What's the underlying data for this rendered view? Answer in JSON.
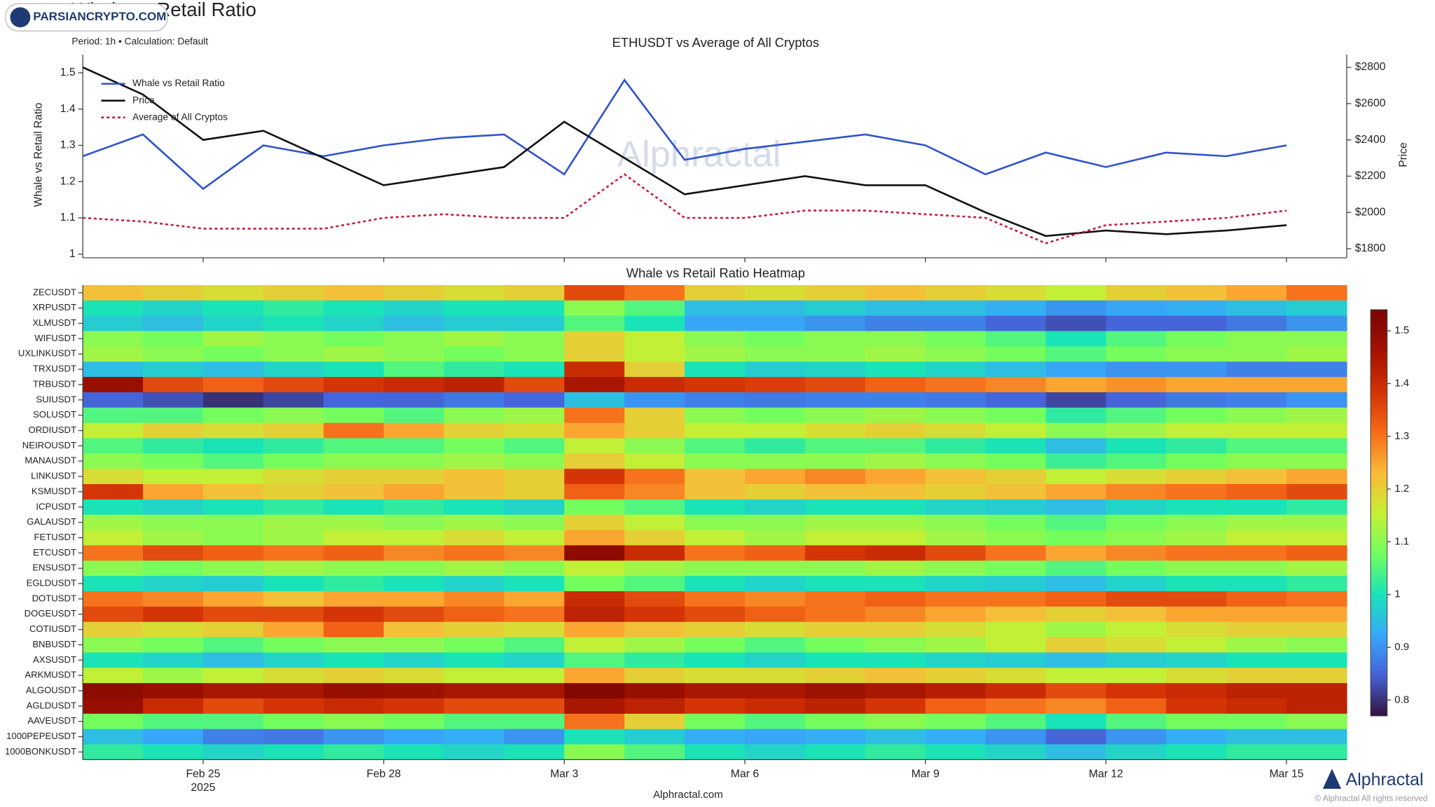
{
  "header": {
    "title": "Whale vs Retail Ratio",
    "subtitle": "Period: 1h • Calculation: Default"
  },
  "watermark": "PARSIANCRYPTO.COM",
  "footer": {
    "source": "Alphractal.com",
    "brand": "Alphractal",
    "copyright": "© Alphractal All rights reserved"
  },
  "chart_data": [
    {
      "type": "line",
      "title": "ETHUSDT vs Average of All Cryptos",
      "watermark": "Alphractal",
      "ylabel": "Whale vs Retail Ratio",
      "y2label": "Price",
      "legend": "upper left",
      "grid": false,
      "x": [
        "2025-02-23",
        "2025-02-24",
        "2025-02-25",
        "2025-02-26",
        "2025-02-27",
        "2025-02-28",
        "2025-03-01",
        "2025-03-02",
        "2025-03-03",
        "2025-03-04",
        "2025-03-05",
        "2025-03-06",
        "2025-03-07",
        "2025-03-08",
        "2025-03-09",
        "2025-03-10",
        "2025-03-11",
        "2025-03-12",
        "2025-03-13",
        "2025-03-14",
        "2025-03-15"
      ],
      "xlim": [
        "2025-02-23",
        "2025-03-16"
      ],
      "ylim": [
        0.99,
        1.55
      ],
      "yticks": [
        1,
        1.1,
        1.2,
        1.3,
        1.4,
        1.5
      ],
      "y2lim": [
        1750,
        2870
      ],
      "y2ticks": [
        {
          "value": 1800,
          "label": "$1800"
        },
        {
          "value": 2000,
          "label": "$2000"
        },
        {
          "value": 2200,
          "label": "$2200"
        },
        {
          "value": 2400,
          "label": "$2400"
        },
        {
          "value": 2600,
          "label": "$2600"
        },
        {
          "value": 2800,
          "label": "$2800"
        }
      ],
      "series": [
        {
          "name": "Whale vs Retail Ratio",
          "color": "#2f54c8",
          "values": [
            1.27,
            1.33,
            1.18,
            1.3,
            1.27,
            1.3,
            1.32,
            1.33,
            1.22,
            1.48,
            1.26,
            1.29,
            1.31,
            1.33,
            1.3,
            1.22,
            1.28,
            1.24,
            1.28,
            1.27,
            1.3
          ]
        },
        {
          "name": "Price",
          "color": "#111111",
          "axis": "y2",
          "values": [
            2800,
            2650,
            2400,
            2450,
            2300,
            2150,
            2200,
            2250,
            2500,
            2300,
            2100,
            2150,
            2200,
            2150,
            2150,
            2000,
            1870,
            1900,
            1880,
            1900,
            1930
          ]
        },
        {
          "name": "Average of All Cryptos",
          "color": "#c8193c",
          "dash": true,
          "values": [
            1.1,
            1.09,
            1.07,
            1.07,
            1.07,
            1.1,
            1.11,
            1.1,
            1.1,
            1.22,
            1.1,
            1.1,
            1.12,
            1.12,
            1.11,
            1.1,
            1.03,
            1.08,
            1.09,
            1.1,
            1.12
          ]
        }
      ]
    },
    {
      "type": "heatmap",
      "title": "Whale vs Retail Ratio Heatmap",
      "x_year_label": "2025",
      "x": [
        "2025-02-23",
        "2025-02-24",
        "2025-02-25",
        "2025-02-26",
        "2025-02-27",
        "2025-02-28",
        "2025-03-01",
        "2025-03-02",
        "2025-03-03",
        "2025-03-04",
        "2025-03-05",
        "2025-03-06",
        "2025-03-07",
        "2025-03-08",
        "2025-03-09",
        "2025-03-10",
        "2025-03-11",
        "2025-03-12",
        "2025-03-13",
        "2025-03-14",
        "2025-03-15"
      ],
      "xlim": [
        "2025-02-23",
        "2025-03-16"
      ],
      "xticks": [
        {
          "value": "2025-02-25",
          "label": "Feb 25"
        },
        {
          "value": "2025-02-28",
          "label": "Feb 28"
        },
        {
          "value": "2025-03-03",
          "label": "Mar 3"
        },
        {
          "value": "2025-03-06",
          "label": "Mar 6"
        },
        {
          "value": "2025-03-09",
          "label": "Mar 9"
        },
        {
          "value": "2025-03-12",
          "label": "Mar 12"
        },
        {
          "value": "2025-03-15",
          "label": "Mar 15"
        }
      ],
      "categories": [
        "ZECUSDT",
        "XRPUSDT",
        "XLMUSDT",
        "WIFUSDT",
        "UXLINKUSDT",
        "TRXUSDT",
        "TRBUSDT",
        "SUIUSDT",
        "SOLUSDT",
        "ORDIUSDT",
        "NEIROUSDT",
        "MANAUSDT",
        "LINKUSDT",
        "KSMUSDT",
        "ICPUSDT",
        "GALAUSDT",
        "FETUSDT",
        "ETCUSDT",
        "ENSUSDT",
        "EGLDUSDT",
        "DOTUSDT",
        "DOGEUSDT",
        "COTIUSDT",
        "BNBUSDT",
        "AXSUSDT",
        "ARKMUSDT",
        "ALGOUSDT",
        "AGLDUSDT",
        "AAVEUSDT",
        "1000PEPEUSDT",
        "1000BONKUSDT"
      ],
      "clim": [
        0.77,
        1.54
      ],
      "cticks": [
        0.8,
        0.9,
        1,
        1.1,
        1.2,
        1.3,
        1.4,
        1.5
      ],
      "colorscale": [
        [
          0,
          "#30123b"
        ],
        [
          0.1,
          "#4662d7"
        ],
        [
          0.2,
          "#36aaf9"
        ],
        [
          0.3,
          "#1ae4b6"
        ],
        [
          0.4,
          "#72fe5e"
        ],
        [
          0.5,
          "#c7ef34"
        ],
        [
          0.6,
          "#fbb938"
        ],
        [
          0.7,
          "#f56918"
        ],
        [
          0.8,
          "#d23105"
        ],
        [
          0.9,
          "#a11201"
        ],
        [
          1,
          "#7a0403"
        ]
      ],
      "values": [
        [
          1.22,
          1.2,
          1.18,
          1.2,
          1.22,
          1.2,
          1.18,
          1.2,
          1.35,
          1.3,
          1.2,
          1.18,
          1.2,
          1.22,
          1.2,
          1.18,
          1.15,
          1.2,
          1.22,
          1.25,
          1.3
        ],
        [
          1.0,
          0.98,
          1.0,
          1.02,
          1.0,
          0.98,
          1.0,
          1.0,
          1.1,
          1.05,
          0.95,
          0.95,
          0.97,
          0.95,
          0.95,
          0.93,
          0.9,
          0.92,
          0.93,
          0.95,
          0.97
        ],
        [
          0.97,
          0.95,
          0.98,
          1.0,
          0.98,
          0.95,
          0.97,
          0.97,
          1.05,
          1.0,
          0.92,
          0.92,
          0.9,
          0.88,
          0.88,
          0.85,
          0.83,
          0.85,
          0.85,
          0.87,
          0.9
        ],
        [
          1.1,
          1.08,
          1.12,
          1.1,
          1.08,
          1.1,
          1.12,
          1.1,
          1.2,
          1.15,
          1.1,
          1.08,
          1.1,
          1.1,
          1.08,
          1.05,
          1.0,
          1.05,
          1.08,
          1.1,
          1.1
        ],
        [
          1.12,
          1.1,
          1.08,
          1.1,
          1.12,
          1.1,
          1.08,
          1.1,
          1.2,
          1.15,
          1.12,
          1.1,
          1.1,
          1.12,
          1.1,
          1.08,
          1.05,
          1.08,
          1.1,
          1.1,
          1.12
        ],
        [
          0.95,
          0.97,
          0.95,
          0.98,
          1.0,
          1.05,
          1.02,
          1.0,
          1.4,
          1.2,
          1.0,
          0.97,
          0.98,
          1.0,
          0.98,
          0.95,
          0.92,
          0.9,
          0.9,
          0.88,
          0.88
        ],
        [
          1.48,
          1.35,
          1.32,
          1.35,
          1.38,
          1.4,
          1.42,
          1.35,
          1.45,
          1.4,
          1.38,
          1.37,
          1.35,
          1.32,
          1.3,
          1.28,
          1.25,
          1.27,
          1.25,
          1.25,
          1.25
        ],
        [
          0.85,
          0.83,
          0.8,
          0.82,
          0.85,
          0.85,
          0.87,
          0.85,
          0.95,
          0.9,
          0.88,
          0.87,
          0.88,
          0.88,
          0.87,
          0.85,
          0.82,
          0.85,
          0.87,
          0.88,
          0.9
        ],
        [
          1.05,
          1.05,
          1.08,
          1.1,
          1.08,
          1.05,
          1.1,
          1.12,
          1.3,
          1.2,
          1.1,
          1.08,
          1.1,
          1.12,
          1.1,
          1.08,
          1.02,
          1.05,
          1.08,
          1.1,
          1.12
        ],
        [
          1.15,
          1.2,
          1.18,
          1.2,
          1.3,
          1.25,
          1.2,
          1.18,
          1.25,
          1.2,
          1.15,
          1.15,
          1.18,
          1.2,
          1.18,
          1.15,
          1.1,
          1.12,
          1.15,
          1.15,
          1.15
        ],
        [
          1.05,
          1.02,
          1.0,
          1.02,
          1.05,
          1.05,
          1.08,
          1.05,
          1.15,
          1.1,
          1.05,
          1.02,
          1.05,
          1.05,
          1.02,
          1.0,
          0.95,
          1.0,
          1.02,
          1.05,
          1.05
        ],
        [
          1.1,
          1.08,
          1.05,
          1.08,
          1.1,
          1.1,
          1.12,
          1.1,
          1.2,
          1.15,
          1.1,
          1.1,
          1.1,
          1.12,
          1.1,
          1.08,
          1.03,
          1.05,
          1.08,
          1.1,
          1.1
        ],
        [
          1.18,
          1.15,
          1.15,
          1.18,
          1.2,
          1.2,
          1.22,
          1.2,
          1.38,
          1.3,
          1.22,
          1.25,
          1.28,
          1.25,
          1.22,
          1.2,
          1.15,
          1.18,
          1.2,
          1.22,
          1.25
        ],
        [
          1.38,
          1.25,
          1.22,
          1.2,
          1.22,
          1.25,
          1.22,
          1.2,
          1.32,
          1.28,
          1.22,
          1.2,
          1.22,
          1.22,
          1.2,
          1.22,
          1.25,
          1.28,
          1.3,
          1.32,
          1.35
        ],
        [
          1.0,
          0.98,
          1.0,
          1.02,
          1.0,
          1.02,
          1.0,
          0.98,
          1.08,
          1.05,
          1.0,
          0.98,
          1.0,
          1.0,
          0.98,
          0.97,
          0.95,
          0.98,
          1.0,
          1.0,
          1.02
        ],
        [
          1.12,
          1.1,
          1.1,
          1.12,
          1.12,
          1.1,
          1.12,
          1.1,
          1.2,
          1.15,
          1.1,
          1.1,
          1.12,
          1.12,
          1.1,
          1.08,
          1.05,
          1.08,
          1.1,
          1.12,
          1.12
        ],
        [
          1.15,
          1.12,
          1.1,
          1.12,
          1.15,
          1.15,
          1.18,
          1.15,
          1.25,
          1.2,
          1.15,
          1.12,
          1.15,
          1.15,
          1.12,
          1.1,
          1.08,
          1.1,
          1.12,
          1.15,
          1.15
        ],
        [
          1.3,
          1.35,
          1.32,
          1.3,
          1.32,
          1.28,
          1.3,
          1.28,
          1.5,
          1.4,
          1.3,
          1.32,
          1.38,
          1.4,
          1.35,
          1.3,
          1.25,
          1.28,
          1.3,
          1.3,
          1.32
        ],
        [
          1.1,
          1.08,
          1.1,
          1.12,
          1.1,
          1.1,
          1.12,
          1.1,
          1.15,
          1.12,
          1.1,
          1.1,
          1.1,
          1.12,
          1.1,
          1.08,
          1.05,
          1.08,
          1.1,
          1.1,
          1.12
        ],
        [
          1.0,
          0.98,
          0.97,
          1.0,
          1.02,
          1.0,
          0.98,
          1.0,
          1.08,
          1.05,
          1.0,
          0.98,
          1.0,
          1.0,
          0.98,
          0.97,
          0.95,
          0.98,
          1.0,
          1.0,
          1.02
        ],
        [
          1.3,
          1.28,
          1.25,
          1.22,
          1.25,
          1.25,
          1.28,
          1.25,
          1.4,
          1.35,
          1.3,
          1.28,
          1.3,
          1.32,
          1.3,
          1.3,
          1.32,
          1.35,
          1.35,
          1.32,
          1.3
        ],
        [
          1.35,
          1.38,
          1.35,
          1.35,
          1.38,
          1.35,
          1.32,
          1.3,
          1.42,
          1.38,
          1.35,
          1.32,
          1.3,
          1.28,
          1.25,
          1.22,
          1.2,
          1.22,
          1.25,
          1.25,
          1.25
        ],
        [
          1.2,
          1.18,
          1.2,
          1.25,
          1.32,
          1.22,
          1.2,
          1.18,
          1.25,
          1.22,
          1.2,
          1.18,
          1.2,
          1.2,
          1.18,
          1.15,
          1.12,
          1.15,
          1.18,
          1.2,
          1.2
        ],
        [
          1.1,
          1.08,
          1.05,
          1.08,
          1.1,
          1.1,
          1.08,
          1.05,
          1.15,
          1.12,
          1.08,
          1.05,
          1.08,
          1.1,
          1.12,
          1.15,
          1.2,
          1.18,
          1.15,
          1.12,
          1.1
        ],
        [
          1.0,
          0.98,
          0.95,
          0.98,
          1.0,
          0.98,
          1.0,
          0.98,
          1.05,
          1.02,
          1.0,
          0.98,
          1.0,
          1.0,
          0.98,
          0.97,
          0.95,
          0.97,
          0.98,
          1.0,
          1.0
        ],
        [
          1.15,
          1.12,
          1.15,
          1.18,
          1.2,
          1.18,
          1.15,
          1.15,
          1.25,
          1.2,
          1.18,
          1.18,
          1.2,
          1.22,
          1.2,
          1.18,
          1.15,
          1.15,
          1.18,
          1.2,
          1.2
        ],
        [
          1.5,
          1.48,
          1.45,
          1.45,
          1.48,
          1.47,
          1.45,
          1.45,
          1.52,
          1.48,
          1.45,
          1.45,
          1.47,
          1.45,
          1.43,
          1.4,
          1.35,
          1.38,
          1.4,
          1.42,
          1.42
        ],
        [
          1.48,
          1.4,
          1.35,
          1.38,
          1.4,
          1.38,
          1.35,
          1.35,
          1.45,
          1.42,
          1.38,
          1.4,
          1.42,
          1.38,
          1.32,
          1.3,
          1.28,
          1.32,
          1.38,
          1.4,
          1.42
        ],
        [
          1.08,
          1.05,
          1.05,
          1.08,
          1.1,
          1.08,
          1.05,
          1.05,
          1.3,
          1.2,
          1.08,
          1.05,
          1.08,
          1.1,
          1.08,
          1.05,
          1.0,
          1.05,
          1.08,
          1.08,
          1.1
        ],
        [
          0.95,
          0.92,
          0.88,
          0.87,
          0.9,
          0.92,
          0.93,
          0.9,
          1.0,
          0.97,
          0.93,
          0.92,
          0.93,
          0.95,
          0.93,
          0.9,
          0.85,
          0.9,
          0.93,
          0.95,
          0.95
        ],
        [
          1.02,
          1.0,
          0.98,
          1.0,
          1.02,
          1.0,
          0.98,
          1.0,
          1.1,
          1.05,
          1.0,
          0.98,
          1.0,
          1.02,
          1.0,
          0.98,
          0.95,
          0.98,
          1.0,
          1.02,
          1.02
        ]
      ]
    }
  ]
}
